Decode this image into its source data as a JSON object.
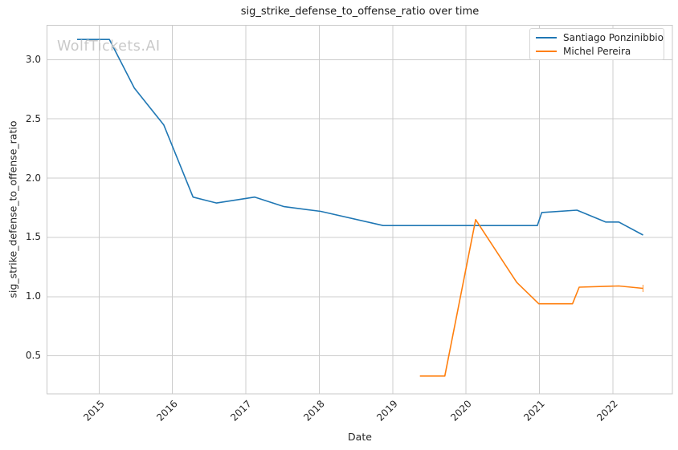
{
  "watermark": "WolfTickets.AI",
  "chart_data": {
    "type": "line",
    "title": "sig_strike_defense_to_offense_ratio over time",
    "xlabel": "Date",
    "ylabel": "sig_strike_defense_to_offense_ratio",
    "xlim": [
      2014.29,
      2022.81
    ],
    "ylim": [
      0.18,
      3.29
    ],
    "grid": true,
    "legend_position": "upper right",
    "x_ticks": [
      {
        "value": 2015,
        "label": "2015"
      },
      {
        "value": 2016,
        "label": "2016"
      },
      {
        "value": 2017,
        "label": "2017"
      },
      {
        "value": 2018,
        "label": "2018"
      },
      {
        "value": 2019,
        "label": "2019"
      },
      {
        "value": 2020,
        "label": "2020"
      },
      {
        "value": 2021,
        "label": "2021"
      },
      {
        "value": 2022,
        "label": "2022"
      }
    ],
    "y_ticks": [
      {
        "value": 0.5,
        "label": "0.5"
      },
      {
        "value": 1.0,
        "label": "1.0"
      },
      {
        "value": 1.5,
        "label": "1.5"
      },
      {
        "value": 2.0,
        "label": "2.0"
      },
      {
        "value": 2.5,
        "label": "2.5"
      },
      {
        "value": 3.0,
        "label": "3.0"
      }
    ],
    "series": [
      {
        "name": "Santiago Ponzinibbio",
        "color": "#1f77b4",
        "end_marker": null,
        "points": [
          [
            2014.7,
            3.17
          ],
          [
            2015.14,
            3.17
          ],
          [
            2015.48,
            2.76
          ],
          [
            2015.88,
            2.45
          ],
          [
            2016.28,
            1.84
          ],
          [
            2016.6,
            1.79
          ],
          [
            2017.12,
            1.84
          ],
          [
            2017.52,
            1.76
          ],
          [
            2018.02,
            1.72
          ],
          [
            2018.87,
            1.6
          ],
          [
            2020.97,
            1.6
          ],
          [
            2021.03,
            1.71
          ],
          [
            2021.51,
            1.73
          ],
          [
            2021.9,
            1.63
          ],
          [
            2022.08,
            1.63
          ],
          [
            2022.41,
            1.52
          ]
        ]
      },
      {
        "name": "Michel Pereira",
        "color": "#ff7f0e",
        "end_marker": "vline",
        "points": [
          [
            2019.37,
            0.33
          ],
          [
            2019.71,
            0.33
          ],
          [
            2020.13,
            1.65
          ],
          [
            2020.69,
            1.12
          ],
          [
            2020.99,
            0.94
          ],
          [
            2021.45,
            0.94
          ],
          [
            2021.54,
            1.08
          ],
          [
            2022.08,
            1.09
          ],
          [
            2022.41,
            1.07
          ]
        ]
      }
    ]
  }
}
